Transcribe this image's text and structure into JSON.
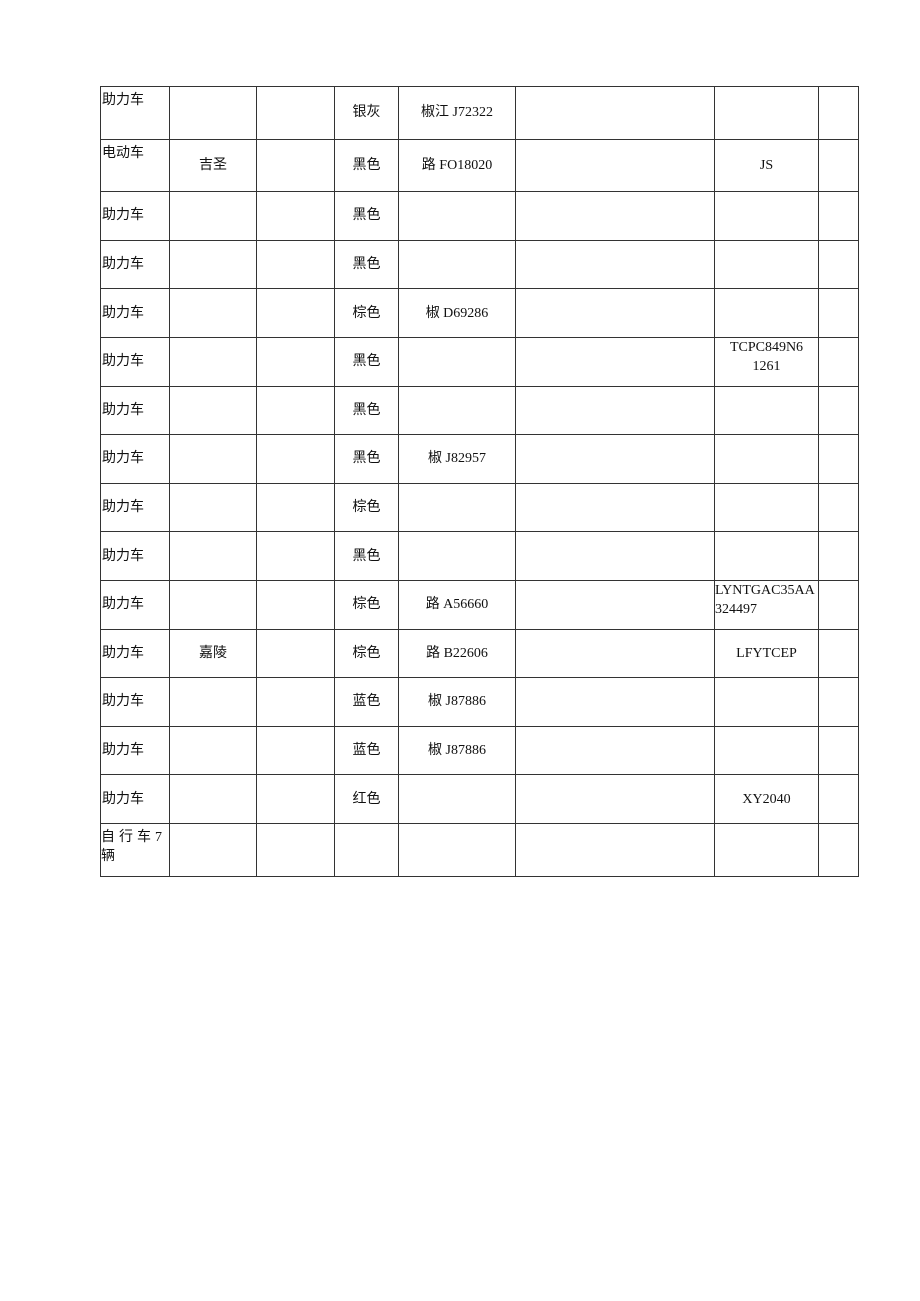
{
  "table": {
    "rows": [
      [
        "助力车",
        "",
        "",
        "银灰",
        "椒江 J72322",
        "",
        "",
        ""
      ],
      [
        "电动车",
        "吉圣",
        "",
        "黑色",
        "路 FO18020",
        "",
        "JS",
        ""
      ],
      [
        "助力车",
        "",
        "",
        "黑色",
        "",
        "",
        "",
        ""
      ],
      [
        "助力车",
        "",
        "",
        "黑色",
        "",
        "",
        "",
        ""
      ],
      [
        "助力车",
        "",
        "",
        "棕色",
        "椒 D69286",
        "",
        "",
        ""
      ],
      [
        "助力车",
        "",
        "",
        "黑色",
        "",
        "",
        "TCPC849N6 1261",
        ""
      ],
      [
        "助力车",
        "",
        "",
        "黑色",
        "",
        "",
        "",
        ""
      ],
      [
        "助力车",
        "",
        "",
        "黑色",
        "椒 J82957",
        "",
        "",
        ""
      ],
      [
        "助力车",
        "",
        "",
        "棕色",
        "",
        "",
        "",
        ""
      ],
      [
        "助力车",
        "",
        "",
        "黑色",
        "",
        "",
        "",
        ""
      ],
      [
        "助力车",
        "",
        "",
        "棕色",
        "路 A56660",
        "",
        "LYNTGAC35AA324497",
        ""
      ],
      [
        "助力车",
        "嘉陵",
        "",
        "棕色",
        "路 B22606",
        "",
        "LFYTCEP",
        ""
      ],
      [
        "助力车",
        "",
        "",
        "蓝色",
        "椒 J87886",
        "",
        "",
        ""
      ],
      [
        "助力车",
        "",
        "",
        "蓝色",
        "椒 J87886",
        "",
        "",
        ""
      ],
      [
        "助力车",
        "",
        "",
        "红色",
        "",
        "",
        "XY2040",
        ""
      ],
      [
        "自行车7辆",
        "",
        "",
        "",
        "",
        "",
        "",
        ""
      ]
    ]
  }
}
